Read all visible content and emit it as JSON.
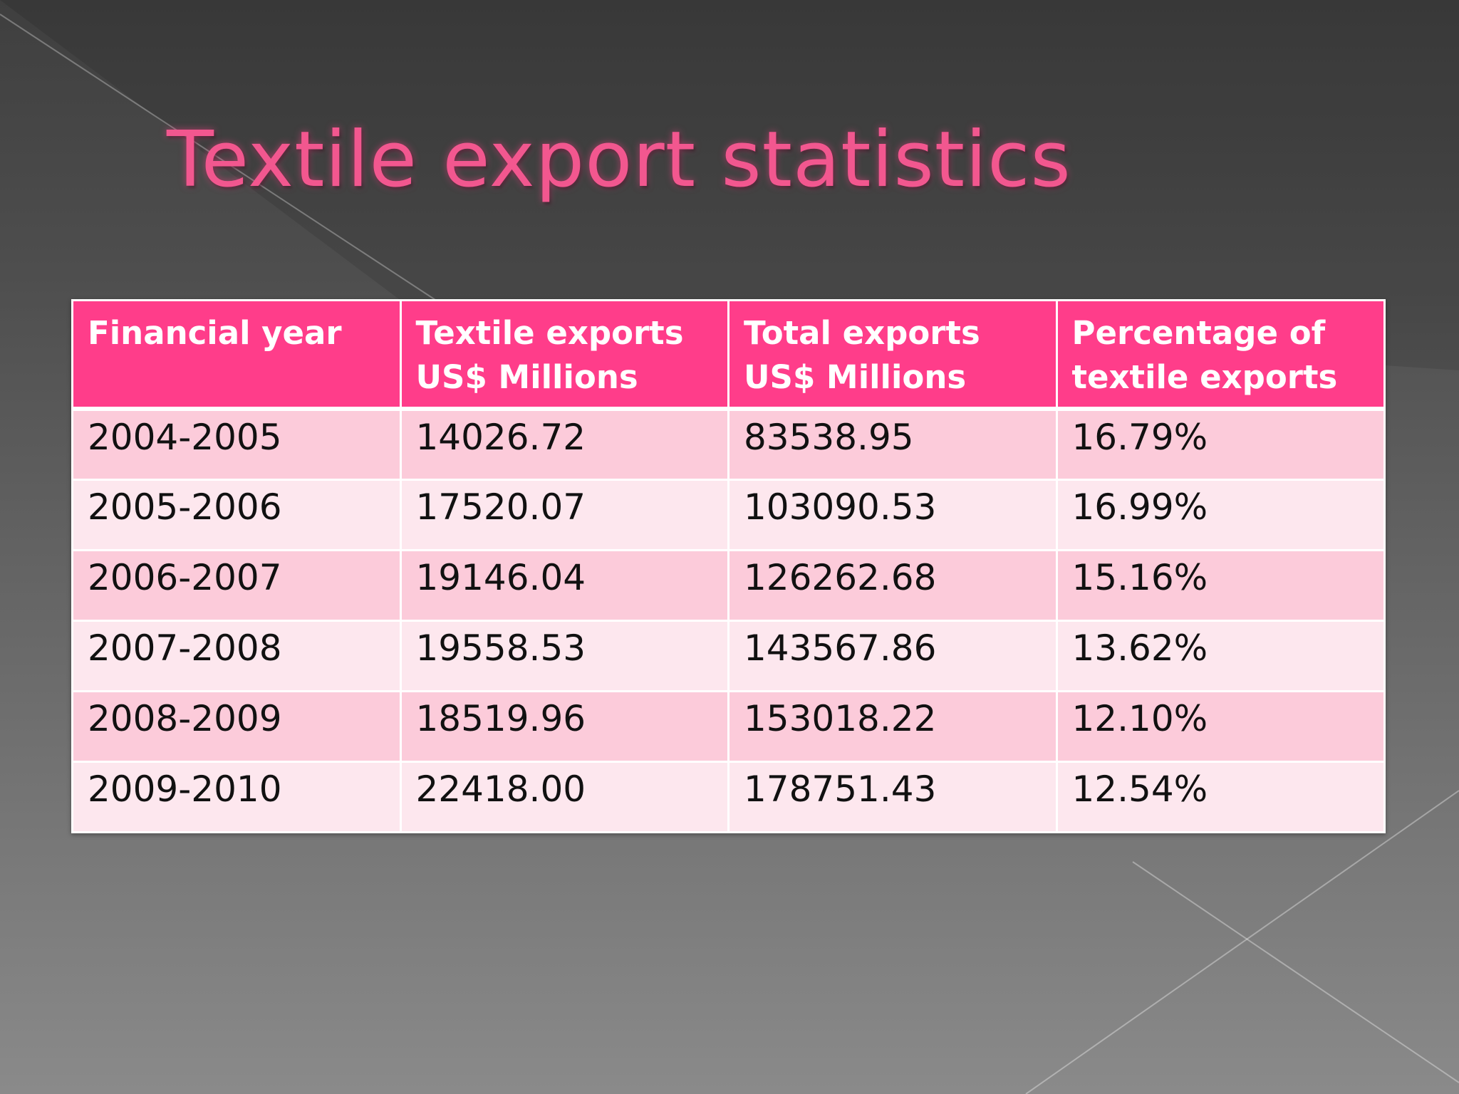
{
  "slide": {
    "title": "Textile export statistics"
  },
  "table": {
    "headers": [
      "Financial year",
      "Textile exports US$ Millions",
      "Total exports US$ Millions",
      "Percentage of textile exports"
    ],
    "rows": [
      [
        "2004-2005",
        "14026.72",
        "83538.95",
        "16.79%"
      ],
      [
        "2005-2006",
        "17520.07",
        "103090.53",
        "16.99%"
      ],
      [
        "2006-2007",
        "19146.04",
        "126262.68",
        "15.16%"
      ],
      [
        "2007-2008",
        "19558.53",
        "143567.86",
        "13.62%"
      ],
      [
        "2008-2009",
        "18519.96",
        "153018.22",
        "12.10%"
      ],
      [
        "2009-2010",
        "22418.00",
        "178751.43",
        "12.54%"
      ]
    ]
  },
  "colors": {
    "title": "#f2578f",
    "header_bg": "#ff3d8a",
    "row_odd": "#fccbda",
    "row_even": "#fde7ee",
    "background_top": "#3f3f3f",
    "background_bottom": "#8a8a8a"
  }
}
